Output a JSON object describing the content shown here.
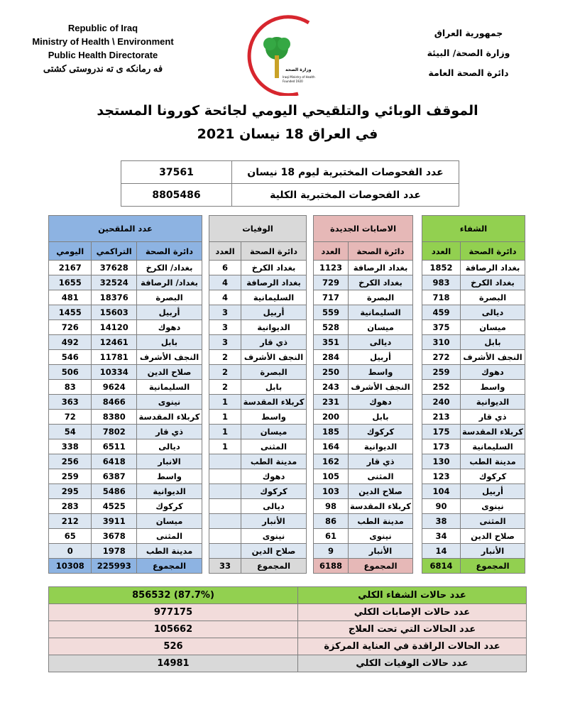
{
  "header": {
    "en": [
      "Republic of Iraq",
      "Ministry of Health \\ Environment",
      "Public Health Directorate",
      "فه رمانكه ى ته ندروستى كشتى"
    ],
    "ar": [
      "جمهورية العراق",
      "وزارة الصحة/ البيئة",
      "دائرة الصحة العامة"
    ],
    "logo_text": [
      "وزارة الصحة العراقية",
      "Iraqi Ministry of Health",
      "Founded 1920"
    ]
  },
  "title": {
    "line1": "الموقف الوبائي والتلقيحي اليومي لجائحة كورونا المستجد",
    "line2": "في العراق  18  نيسان 2021"
  },
  "tests": [
    {
      "label": "عدد الفحوصات المختبرية  ليوم 18 نيسان",
      "value": "37561"
    },
    {
      "label": "عدد الفحوصات المختبرية الكلية",
      "value": "8805486"
    }
  ],
  "colors": {
    "recovered": "#92d050",
    "new_cases": "#e6b8b7",
    "deaths": "#d9d9d9",
    "vaccinated": "#8db3e2",
    "stripe": "#dce6f1"
  },
  "tables": {
    "recovered": {
      "title": "الشفاء",
      "cols": [
        "دائرة الصحة",
        "العدد"
      ],
      "rows": [
        [
          "بغداد الرصافة",
          "1852"
        ],
        [
          "بغداد الكرخ",
          "983"
        ],
        [
          "البصرة",
          "718"
        ],
        [
          "ديالى",
          "459"
        ],
        [
          "ميسان",
          "375"
        ],
        [
          "بابل",
          "310"
        ],
        [
          "النجف الأشرف",
          "272"
        ],
        [
          "دهوك",
          "259"
        ],
        [
          "واسط",
          "252"
        ],
        [
          "الديوانية",
          "240"
        ],
        [
          "ذي قار",
          "213"
        ],
        [
          "كربلاء المقدسة",
          "175"
        ],
        [
          "السليمانية",
          "173"
        ],
        [
          "مدينة الطب",
          "130"
        ],
        [
          "كركوك",
          "123"
        ],
        [
          "أربيل",
          "104"
        ],
        [
          "نينوى",
          "90"
        ],
        [
          "المثنى",
          "38"
        ],
        [
          "صلاح الدين",
          "34"
        ],
        [
          "الأنبار",
          "14"
        ]
      ],
      "total": [
        "المجموع",
        "6814"
      ]
    },
    "new_cases": {
      "title": "الاصابات الجديدة",
      "cols": [
        "دائرة الصحة",
        "العدد"
      ],
      "rows": [
        [
          "بغداد الرصافة",
          "1123"
        ],
        [
          "بغداد الكرخ",
          "729"
        ],
        [
          "البصرة",
          "717"
        ],
        [
          "السليمانية",
          "559"
        ],
        [
          "ميسان",
          "528"
        ],
        [
          "ديالى",
          "351"
        ],
        [
          "أربيل",
          "284"
        ],
        [
          "واسط",
          "250"
        ],
        [
          "النجف الأشرف",
          "243"
        ],
        [
          "دهوك",
          "231"
        ],
        [
          "بابل",
          "200"
        ],
        [
          "كركوك",
          "185"
        ],
        [
          "الديوانية",
          "164"
        ],
        [
          "ذي قار",
          "162"
        ],
        [
          "المثنى",
          "105"
        ],
        [
          "صلاح الدين",
          "103"
        ],
        [
          "كربلاء المقدسة",
          "98"
        ],
        [
          "مدينة الطب",
          "86"
        ],
        [
          "نينوى",
          "61"
        ],
        [
          "الأنبار",
          "9"
        ]
      ],
      "total": [
        "المجموع",
        "6188"
      ]
    },
    "deaths": {
      "title": "الوفيات",
      "cols": [
        "دائرة الصحة",
        "العدد"
      ],
      "rows": [
        [
          "بغداد الكرخ",
          "6"
        ],
        [
          "بغداد الرصافة",
          "4"
        ],
        [
          "السليمانية",
          "4"
        ],
        [
          "أربيل",
          "3"
        ],
        [
          "الديوانية",
          "3"
        ],
        [
          "ذي قار",
          "3"
        ],
        [
          "النجف الأشرف",
          "2"
        ],
        [
          "البصرة",
          "2"
        ],
        [
          "بابل",
          "2"
        ],
        [
          "كربلاء المقدسة",
          "1"
        ],
        [
          "واسط",
          "1"
        ],
        [
          "ميسان",
          "1"
        ],
        [
          "المثنى",
          "1"
        ],
        [
          "مدينة الطب",
          ""
        ],
        [
          "دهوك",
          ""
        ],
        [
          "كركوك",
          ""
        ],
        [
          "ديالى",
          ""
        ],
        [
          "الأنبار",
          ""
        ],
        [
          "نينوى",
          ""
        ],
        [
          "صلاح الدين",
          ""
        ]
      ],
      "total": [
        "المجموع",
        "33"
      ]
    },
    "vaccinated": {
      "title": "عدد الملقحين",
      "cols": [
        "دائرة الصحة",
        "التراكمي",
        "اليومي"
      ],
      "rows": [
        [
          "بغداد/ الكرخ",
          "37628",
          "2167"
        ],
        [
          "بغداد/ الرصافة",
          "32524",
          "1655"
        ],
        [
          "البصرة",
          "18376",
          "481"
        ],
        [
          "أربيل",
          "15603",
          "1455"
        ],
        [
          "دهوك",
          "14120",
          "726"
        ],
        [
          "بابل",
          "12461",
          "492"
        ],
        [
          "النجف الأشرف",
          "11781",
          "546"
        ],
        [
          "صلاح الدين",
          "10334",
          "506"
        ],
        [
          "السليمانية",
          "9624",
          "83"
        ],
        [
          "نينوى",
          "8466",
          "363"
        ],
        [
          "كربلاء المقدسة",
          "8380",
          "72"
        ],
        [
          "ذي قار",
          "7802",
          "54"
        ],
        [
          "ديالى",
          "6511",
          "338"
        ],
        [
          "الانبار",
          "6418",
          "256"
        ],
        [
          "واسط",
          "6387",
          "259"
        ],
        [
          "الديوانية",
          "5486",
          "295"
        ],
        [
          "كركوك",
          "4525",
          "283"
        ],
        [
          "ميسان",
          "3911",
          "212"
        ],
        [
          "المثنى",
          "3678",
          "65"
        ],
        [
          "مدينة الطب",
          "1978",
          "0"
        ]
      ],
      "total": [
        "المجموع",
        "225993",
        "10308"
      ]
    }
  },
  "summary": [
    {
      "label": "عدد حالات الشفاء الكلي",
      "value": "856532    (87.7%)",
      "color": "#92d050"
    },
    {
      "label": "عدد حالات الإصابات الكلي",
      "value": "977175",
      "color": "#f2dcdb"
    },
    {
      "label": "عدد الحالات التي تحت العلاج",
      "value": "105662",
      "color": "#f2dcdb"
    },
    {
      "label": "عدد الحالات الراقدة في العناية المركزة",
      "value": "526",
      "color": "#f2dcdb"
    },
    {
      "label": "عدد حالات الوفيات الكلي",
      "value": "14981",
      "color": "#d9d9d9"
    }
  ]
}
